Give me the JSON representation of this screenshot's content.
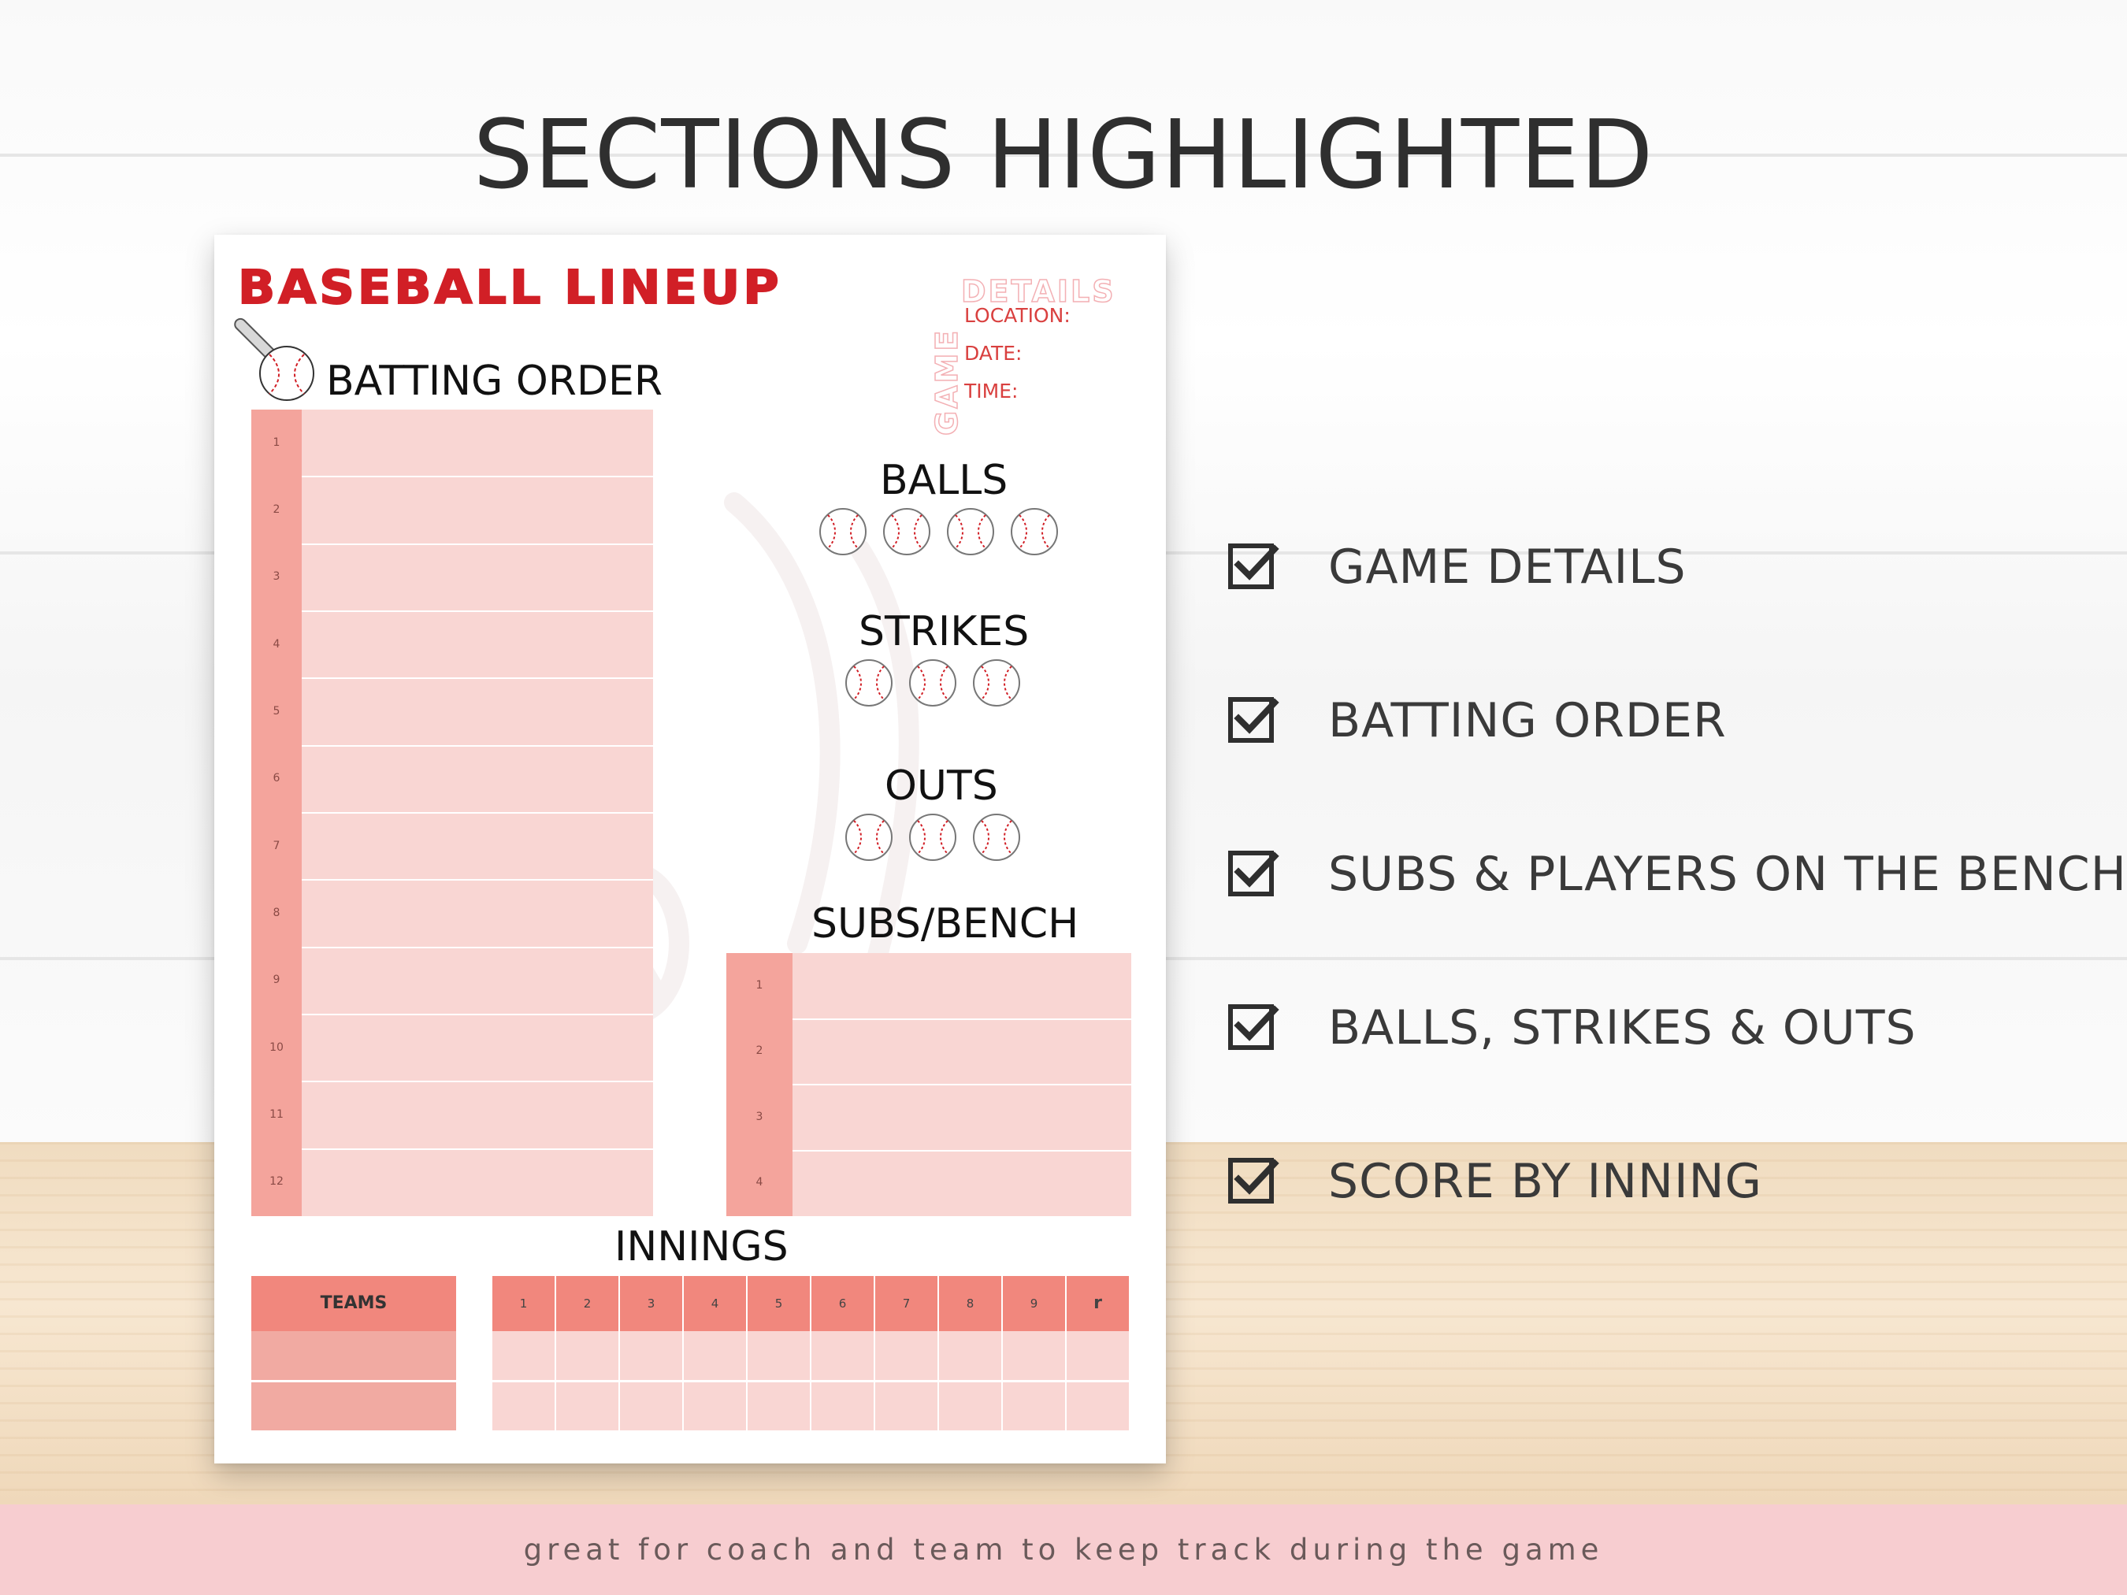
{
  "headline": "SECTIONS HIGHLIGHTED",
  "sheet": {
    "title": "BASEBALL LINEUP",
    "game_details": {
      "heading_vertical": "GAME",
      "heading_horizontal": "DETAILS",
      "fields": [
        "LOCATION:",
        "DATE:",
        "TIME:"
      ]
    },
    "batting_order": {
      "label": "BATTING ORDER",
      "rows": [
        "1",
        "2",
        "3",
        "4",
        "5",
        "6",
        "7",
        "8",
        "9",
        "10",
        "11",
        "12"
      ]
    },
    "balls": {
      "label": "BALLS",
      "count": 4
    },
    "strikes": {
      "label": "STRIKES",
      "count": 3
    },
    "outs": {
      "label": "OUTS",
      "count": 3
    },
    "subs_bench": {
      "label": "SUBS/BENCH",
      "rows": [
        "1",
        "2",
        "3",
        "4"
      ]
    },
    "innings": {
      "label": "INNINGS",
      "teams_header": "TEAMS",
      "columns": [
        "1",
        "2",
        "3",
        "4",
        "5",
        "6",
        "7",
        "8",
        "9",
        "r"
      ],
      "team_rows": 2
    }
  },
  "checklist": [
    "GAME DETAILS",
    "BATTING ORDER",
    "SUBS & PLAYERS ON THE BENCH",
    "BALLS, STRIKES & OUTS",
    "SCORE BY INNING"
  ],
  "footer_text": "great for coach and team to keep track during the game",
  "colors": {
    "title_red": "#d11f26",
    "row_pink": "#f9d6d3",
    "number_col": "#f4a49c",
    "innings_header": "#f1877d",
    "footer_band": "#f7cdd0"
  }
}
